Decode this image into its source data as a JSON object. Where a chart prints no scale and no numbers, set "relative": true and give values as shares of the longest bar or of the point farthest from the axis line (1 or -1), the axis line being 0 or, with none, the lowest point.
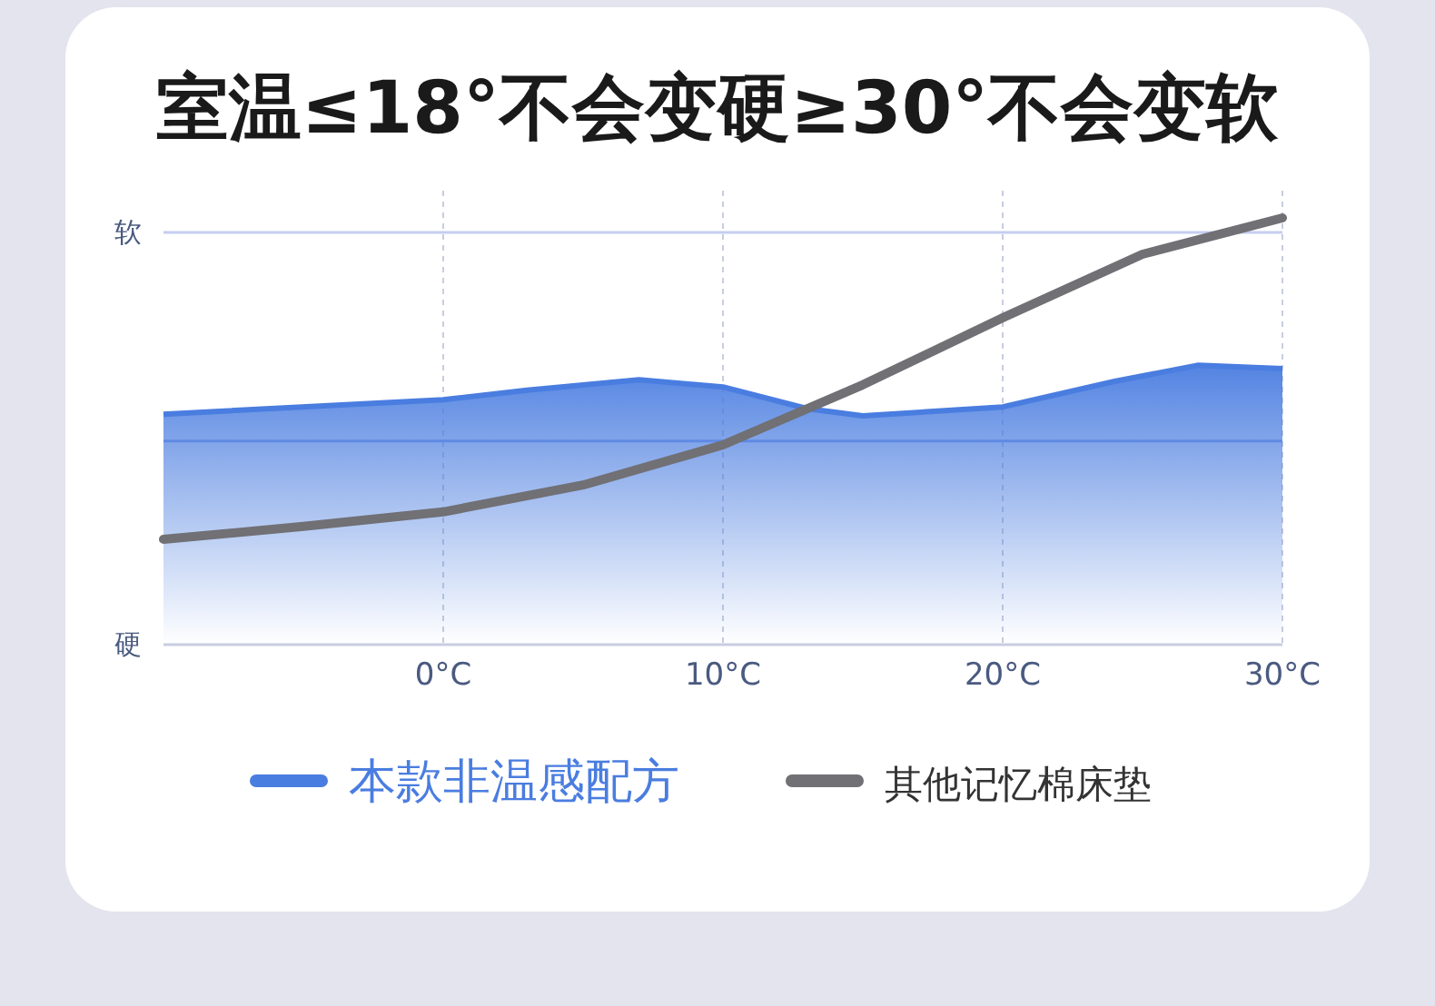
{
  "chart_data": {
    "type": "line",
    "title": "室温≤18°不会变硬≥30°不会变软",
    "relative": true,
    "xlim": [
      -10,
      30
    ],
    "xticks": [
      {
        "value": 0,
        "label": "0°C"
      },
      {
        "value": 10,
        "label": "10°C"
      },
      {
        "value": 20,
        "label": "20°C"
      },
      {
        "value": 30,
        "label": "30°C"
      }
    ],
    "grid": "x",
    "legend": "bottom",
    "annotations": [
      {
        "text": "软",
        "x": -10,
        "y": 0.966
      },
      {
        "text": "硬",
        "x": -10,
        "y": 0
      }
    ],
    "ref_lines": [
      {
        "axis": "y",
        "value": 0.966,
        "color": "#c5cdf0"
      },
      {
        "axis": "y",
        "value": 0.477,
        "color": "#8fa6ea"
      }
    ],
    "series": [
      {
        "name": "本款非温感配方",
        "type": "area",
        "color": "#4a7de0",
        "x": [
          -10,
          0,
          3,
          7,
          10,
          13,
          15,
          20,
          24,
          27,
          30
        ],
        "values": [
          0.54,
          0.574,
          0.596,
          0.621,
          0.604,
          0.553,
          0.536,
          0.557,
          0.617,
          0.655,
          0.647
        ]
      },
      {
        "name": "其他记忆棉床垫",
        "color": "#707075",
        "x": [
          -10,
          -5,
          0,
          5,
          10,
          15,
          20,
          25,
          30
        ],
        "values": [
          0.247,
          0.277,
          0.311,
          0.374,
          0.468,
          0.609,
          0.766,
          0.915,
          1.0
        ]
      }
    ]
  }
}
